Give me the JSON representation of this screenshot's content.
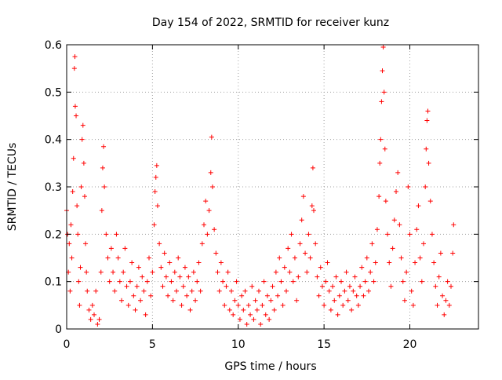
{
  "chart_data": {
    "type": "scatter",
    "title": "Day 154 of 2022, SRMTID for receiver kunz",
    "xlabel": "GPS time / hours",
    "ylabel": "SRMTID / TECUs",
    "xlim": [
      0,
      24
    ],
    "ylim": [
      0,
      0.6
    ],
    "xticks": [
      0,
      5,
      10,
      15,
      20
    ],
    "yticks": [
      0,
      0.1,
      0.2,
      0.3,
      0.4,
      0.5,
      0.6
    ],
    "xtick_labels": [
      "0",
      "5",
      "10",
      "15",
      "20"
    ],
    "ytick_labels": [
      "0",
      "0.1",
      "0.2",
      "0.3",
      "0.4",
      "0.5",
      "0.6"
    ],
    "grid": true,
    "marker": "+",
    "color": "#ff0000",
    "series": [
      {
        "name": "SRMTID",
        "points": [
          [
            0.0,
            0.25
          ],
          [
            0.05,
            0.2
          ],
          [
            0.1,
            0.12
          ],
          [
            0.15,
            0.18
          ],
          [
            0.2,
            0.08
          ],
          [
            0.25,
            0.22
          ],
          [
            0.3,
            0.15
          ],
          [
            0.35,
            0.29
          ],
          [
            0.4,
            0.36
          ],
          [
            0.45,
            0.55
          ],
          [
            0.48,
            0.575
          ],
          [
            0.5,
            0.47
          ],
          [
            0.55,
            0.45
          ],
          [
            0.6,
            0.26
          ],
          [
            0.65,
            0.2
          ],
          [
            0.7,
            0.1
          ],
          [
            0.75,
            0.05
          ],
          [
            0.8,
            0.13
          ],
          [
            0.85,
            0.3
          ],
          [
            0.9,
            0.4
          ],
          [
            0.95,
            0.43
          ],
          [
            1.0,
            0.35
          ],
          [
            1.05,
            0.28
          ],
          [
            1.1,
            0.18
          ],
          [
            1.15,
            0.12
          ],
          [
            1.2,
            0.08
          ],
          [
            1.3,
            0.04
          ],
          [
            1.4,
            0.02
          ],
          [
            1.5,
            0.05
          ],
          [
            1.6,
            0.03
          ],
          [
            1.7,
            0.08
          ],
          [
            1.8,
            0.01
          ],
          [
            1.9,
            0.02
          ],
          [
            2.0,
            0.12
          ],
          [
            2.05,
            0.25
          ],
          [
            2.1,
            0.34
          ],
          [
            2.15,
            0.385
          ],
          [
            2.2,
            0.3
          ],
          [
            2.3,
            0.2
          ],
          [
            2.4,
            0.15
          ],
          [
            2.5,
            0.1
          ],
          [
            2.6,
            0.17
          ],
          [
            2.7,
            0.12
          ],
          [
            2.8,
            0.08
          ],
          [
            2.9,
            0.2
          ],
          [
            3.0,
            0.15
          ],
          [
            3.1,
            0.1
          ],
          [
            3.2,
            0.06
          ],
          [
            3.3,
            0.12
          ],
          [
            3.4,
            0.17
          ],
          [
            3.5,
            0.09
          ],
          [
            3.6,
            0.05
          ],
          [
            3.7,
            0.1
          ],
          [
            3.8,
            0.14
          ],
          [
            3.9,
            0.07
          ],
          [
            4.0,
            0.04
          ],
          [
            4.1,
            0.09
          ],
          [
            4.2,
            0.13
          ],
          [
            4.3,
            0.06
          ],
          [
            4.4,
            0.11
          ],
          [
            4.5,
            0.08
          ],
          [
            4.6,
            0.03
          ],
          [
            4.7,
            0.1
          ],
          [
            4.8,
            0.15
          ],
          [
            4.9,
            0.07
          ],
          [
            5.0,
            0.12
          ],
          [
            5.1,
            0.22
          ],
          [
            5.15,
            0.29
          ],
          [
            5.2,
            0.32
          ],
          [
            5.25,
            0.345
          ],
          [
            5.3,
            0.26
          ],
          [
            5.4,
            0.18
          ],
          [
            5.5,
            0.13
          ],
          [
            5.6,
            0.09
          ],
          [
            5.7,
            0.16
          ],
          [
            5.8,
            0.11
          ],
          [
            5.9,
            0.07
          ],
          [
            6.0,
            0.14
          ],
          [
            6.1,
            0.1
          ],
          [
            6.2,
            0.06
          ],
          [
            6.3,
            0.12
          ],
          [
            6.4,
            0.08
          ],
          [
            6.5,
            0.15
          ],
          [
            6.6,
            0.11
          ],
          [
            6.7,
            0.05
          ],
          [
            6.8,
            0.09
          ],
          [
            6.9,
            0.13
          ],
          [
            7.0,
            0.07
          ],
          [
            7.1,
            0.11
          ],
          [
            7.2,
            0.04
          ],
          [
            7.3,
            0.08
          ],
          [
            7.4,
            0.12
          ],
          [
            7.5,
            0.06
          ],
          [
            7.6,
            0.1
          ],
          [
            7.7,
            0.14
          ],
          [
            7.8,
            0.08
          ],
          [
            7.9,
            0.18
          ],
          [
            8.0,
            0.22
          ],
          [
            8.1,
            0.27
          ],
          [
            8.2,
            0.2
          ],
          [
            8.3,
            0.25
          ],
          [
            8.4,
            0.33
          ],
          [
            8.45,
            0.405
          ],
          [
            8.5,
            0.3
          ],
          [
            8.6,
            0.21
          ],
          [
            8.7,
            0.16
          ],
          [
            8.8,
            0.12
          ],
          [
            8.9,
            0.08
          ],
          [
            9.0,
            0.14
          ],
          [
            9.1,
            0.1
          ],
          [
            9.2,
            0.05
          ],
          [
            9.3,
            0.09
          ],
          [
            9.4,
            0.12
          ],
          [
            9.5,
            0.04
          ],
          [
            9.6,
            0.08
          ],
          [
            9.7,
            0.03
          ],
          [
            9.8,
            0.06
          ],
          [
            9.9,
            0.1
          ],
          [
            10.0,
            0.05
          ],
          [
            10.1,
            0.02
          ],
          [
            10.2,
            0.07
          ],
          [
            10.3,
            0.04
          ],
          [
            10.4,
            0.08
          ],
          [
            10.5,
            0.01
          ],
          [
            10.6,
            0.05
          ],
          [
            10.7,
            0.03
          ],
          [
            10.8,
            0.09
          ],
          [
            10.9,
            0.02
          ],
          [
            11.0,
            0.06
          ],
          [
            11.1,
            0.04
          ],
          [
            11.2,
            0.08
          ],
          [
            11.3,
            0.01
          ],
          [
            11.4,
            0.05
          ],
          [
            11.5,
            0.1
          ],
          [
            11.6,
            0.03
          ],
          [
            11.7,
            0.07
          ],
          [
            11.8,
            0.02
          ],
          [
            11.9,
            0.06
          ],
          [
            12.0,
            0.09
          ],
          [
            12.1,
            0.04
          ],
          [
            12.2,
            0.12
          ],
          [
            12.3,
            0.07
          ],
          [
            12.4,
            0.15
          ],
          [
            12.5,
            0.1
          ],
          [
            12.6,
            0.05
          ],
          [
            12.7,
            0.13
          ],
          [
            12.8,
            0.08
          ],
          [
            12.9,
            0.17
          ],
          [
            13.0,
            0.12
          ],
          [
            13.1,
            0.2
          ],
          [
            13.2,
            0.1
          ],
          [
            13.3,
            0.15
          ],
          [
            13.4,
            0.06
          ],
          [
            13.5,
            0.11
          ],
          [
            13.6,
            0.18
          ],
          [
            13.7,
            0.23
          ],
          [
            13.8,
            0.28
          ],
          [
            13.9,
            0.16
          ],
          [
            14.0,
            0.12
          ],
          [
            14.1,
            0.2
          ],
          [
            14.2,
            0.15
          ],
          [
            14.3,
            0.26
          ],
          [
            14.35,
            0.34
          ],
          [
            14.4,
            0.25
          ],
          [
            14.5,
            0.18
          ],
          [
            14.6,
            0.11
          ],
          [
            14.7,
            0.07
          ],
          [
            14.8,
            0.13
          ],
          [
            14.9,
            0.09
          ],
          [
            15.0,
            0.05
          ],
          [
            15.1,
            0.1
          ],
          [
            15.2,
            0.14
          ],
          [
            15.3,
            0.08
          ],
          [
            15.4,
            0.04
          ],
          [
            15.5,
            0.09
          ],
          [
            15.6,
            0.06
          ],
          [
            15.7,
            0.11
          ],
          [
            15.8,
            0.03
          ],
          [
            15.9,
            0.07
          ],
          [
            16.0,
            0.1
          ],
          [
            16.1,
            0.05
          ],
          [
            16.2,
            0.08
          ],
          [
            16.3,
            0.12
          ],
          [
            16.4,
            0.06
          ],
          [
            16.5,
            0.09
          ],
          [
            16.6,
            0.04
          ],
          [
            16.7,
            0.08
          ],
          [
            16.8,
            0.11
          ],
          [
            16.9,
            0.07
          ],
          [
            17.0,
            0.05
          ],
          [
            17.1,
            0.09
          ],
          [
            17.2,
            0.13
          ],
          [
            17.3,
            0.07
          ],
          [
            17.4,
            0.1
          ],
          [
            17.5,
            0.15
          ],
          [
            17.6,
            0.08
          ],
          [
            17.7,
            0.12
          ],
          [
            17.8,
            0.18
          ],
          [
            17.9,
            0.1
          ],
          [
            18.0,
            0.14
          ],
          [
            18.1,
            0.21
          ],
          [
            18.2,
            0.28
          ],
          [
            18.25,
            0.35
          ],
          [
            18.3,
            0.4
          ],
          [
            18.35,
            0.48
          ],
          [
            18.4,
            0.545
          ],
          [
            18.45,
            0.595
          ],
          [
            18.5,
            0.5
          ],
          [
            18.55,
            0.38
          ],
          [
            18.6,
            0.27
          ],
          [
            18.7,
            0.2
          ],
          [
            18.8,
            0.14
          ],
          [
            18.9,
            0.09
          ],
          [
            19.0,
            0.17
          ],
          [
            19.1,
            0.23
          ],
          [
            19.2,
            0.29
          ],
          [
            19.3,
            0.33
          ],
          [
            19.4,
            0.22
          ],
          [
            19.5,
            0.15
          ],
          [
            19.6,
            0.1
          ],
          [
            19.7,
            0.06
          ],
          [
            19.8,
            0.12
          ],
          [
            19.9,
            0.3
          ],
          [
            20.0,
            0.2
          ],
          [
            20.1,
            0.08
          ],
          [
            20.2,
            0.05
          ],
          [
            20.3,
            0.14
          ],
          [
            20.4,
            0.21
          ],
          [
            20.5,
            0.26
          ],
          [
            20.6,
            0.15
          ],
          [
            20.7,
            0.1
          ],
          [
            20.8,
            0.18
          ],
          [
            20.9,
            0.3
          ],
          [
            20.95,
            0.38
          ],
          [
            21.0,
            0.44
          ],
          [
            21.05,
            0.46
          ],
          [
            21.1,
            0.35
          ],
          [
            21.2,
            0.27
          ],
          [
            21.3,
            0.2
          ],
          [
            21.4,
            0.14
          ],
          [
            21.5,
            0.09
          ],
          [
            21.6,
            0.05
          ],
          [
            21.7,
            0.11
          ],
          [
            21.8,
            0.16
          ],
          [
            21.9,
            0.07
          ],
          [
            22.0,
            0.03
          ],
          [
            22.1,
            0.06
          ],
          [
            22.2,
            0.1
          ],
          [
            22.3,
            0.05
          ],
          [
            22.4,
            0.09
          ],
          [
            22.5,
            0.16
          ],
          [
            22.55,
            0.22
          ]
        ]
      }
    ]
  }
}
